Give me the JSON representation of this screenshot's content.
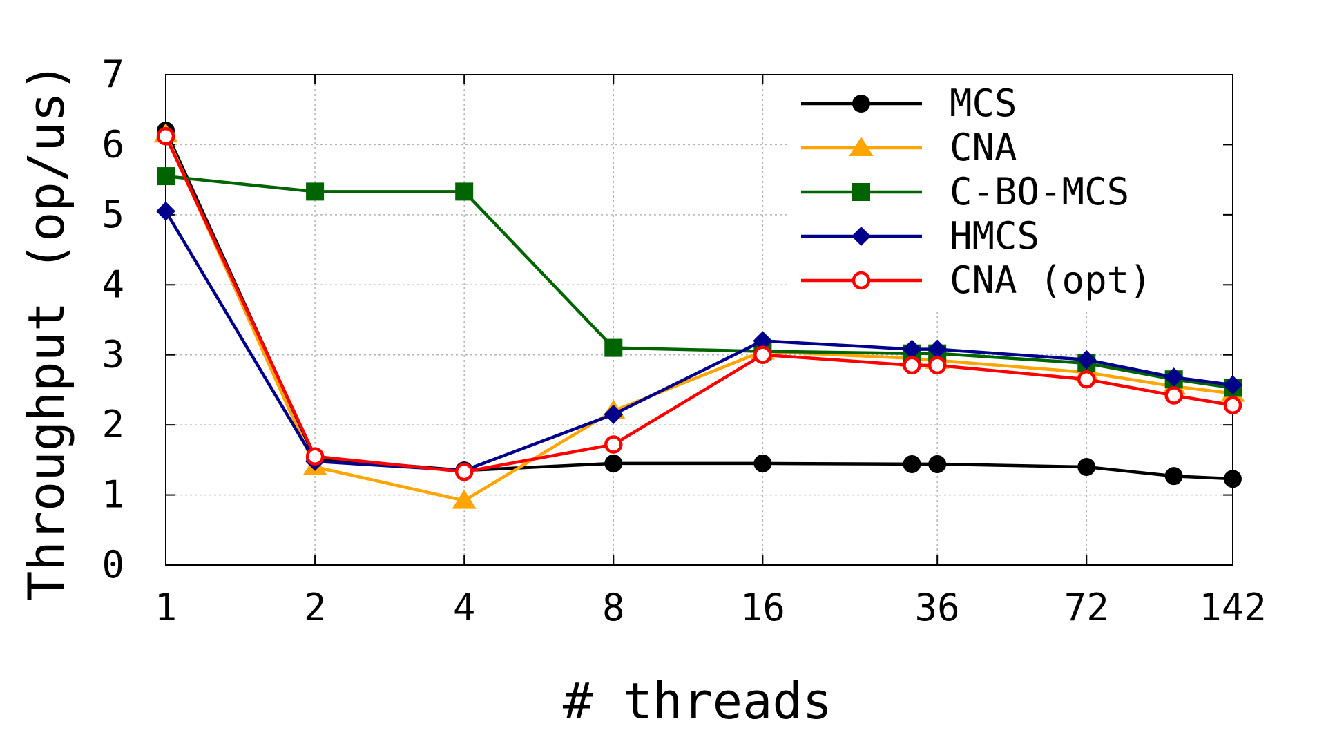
{
  "chart_data": {
    "type": "line",
    "xlabel": "# threads",
    "ylabel": "Throughput (op/us)",
    "x_ticks": [
      "1",
      "2",
      "4",
      "8",
      "16",
      "36",
      "72",
      "142"
    ],
    "x": [
      1,
      2,
      4,
      8,
      16,
      32,
      36,
      72,
      108,
      142
    ],
    "ylim": [
      0,
      7
    ],
    "y_ticks": [
      "0",
      "1",
      "2",
      "3",
      "4",
      "5",
      "6",
      "7"
    ],
    "grid": true,
    "legend_position": "top-right",
    "series": [
      {
        "name": "MCS",
        "color": "#000000",
        "marker": "filled-circle",
        "values": [
          6.2,
          1.52,
          1.35,
          1.45,
          1.45,
          1.44,
          1.44,
          1.4,
          1.27,
          1.23
        ]
      },
      {
        "name": "CNA",
        "color": "#ffa500",
        "marker": "filled-triangle",
        "values": [
          6.15,
          1.4,
          0.92,
          2.2,
          3.05,
          2.95,
          2.92,
          2.75,
          2.55,
          2.45
        ]
      },
      {
        "name": "C-BO-MCS",
        "color": "#006400",
        "marker": "filled-square",
        "values": [
          5.55,
          5.33,
          5.33,
          3.1,
          3.05,
          3.02,
          3.02,
          2.88,
          2.65,
          2.53
        ]
      },
      {
        "name": "HMCS",
        "color": "#00008b",
        "marker": "filled-diamond",
        "values": [
          5.05,
          1.48,
          1.35,
          2.15,
          3.2,
          3.08,
          3.08,
          2.93,
          2.68,
          2.57
        ]
      },
      {
        "name": "CNA (opt)",
        "color": "#ff0000",
        "marker": "open-circle",
        "values": [
          6.12,
          1.55,
          1.33,
          1.72,
          3.0,
          2.85,
          2.85,
          2.65,
          2.42,
          2.28
        ]
      }
    ]
  }
}
